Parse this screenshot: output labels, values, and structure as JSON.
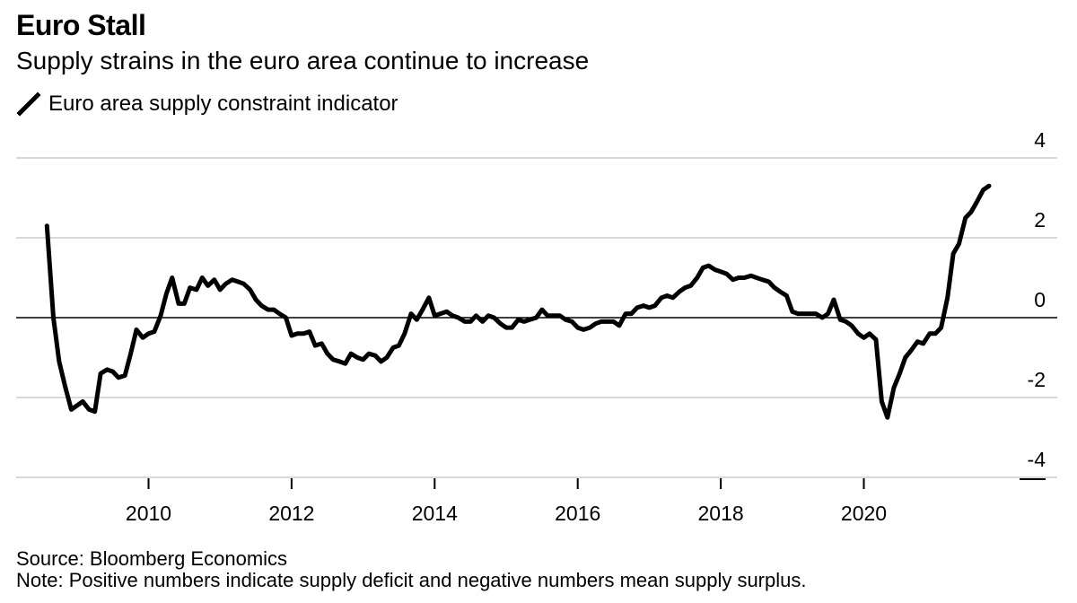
{
  "header": {
    "title": "Euro Stall",
    "subtitle": "Supply strains in the euro area continue to increase"
  },
  "legend": {
    "label": "Euro area supply constraint indicator"
  },
  "footer": {
    "source": "Source: Bloomberg Economics",
    "note": "Note: Positive numbers indicate supply deficit and negative numbers mean supply surplus."
  },
  "colors": {
    "line": "#000000",
    "grid": "#d9d9d9",
    "zero_line": "#000000",
    "axis_text": "#000000"
  },
  "chart_data": {
    "type": "line",
    "title": "Euro Stall",
    "subtitle": "Supply strains in the euro area continue to increase",
    "xlabel": "",
    "ylabel": "",
    "xlim": [
      2008.35,
      2022.3
    ],
    "ylim": [
      -4.2,
      4.5
    ],
    "x_ticks": [
      2010,
      2012,
      2014,
      2016,
      2018,
      2020
    ],
    "y_ticks": [
      4,
      2,
      0,
      -2,
      -4
    ],
    "y_tick_labels": [
      "4",
      "2",
      "0",
      "-2",
      "-4"
    ],
    "grid": true,
    "legend_position": "top-left",
    "series": [
      {
        "name": "Euro area supply constraint indicator",
        "x": [
          2008.58,
          2008.67,
          2008.75,
          2008.83,
          2008.92,
          2009.0,
          2009.08,
          2009.17,
          2009.25,
          2009.33,
          2009.42,
          2009.5,
          2009.58,
          2009.67,
          2009.75,
          2009.83,
          2009.92,
          2010.0,
          2010.08,
          2010.17,
          2010.25,
          2010.33,
          2010.42,
          2010.5,
          2010.58,
          2010.67,
          2010.75,
          2010.83,
          2010.92,
          2011.0,
          2011.08,
          2011.17,
          2011.25,
          2011.33,
          2011.42,
          2011.5,
          2011.58,
          2011.67,
          2011.75,
          2011.83,
          2011.92,
          2012.0,
          2012.08,
          2012.17,
          2012.25,
          2012.33,
          2012.42,
          2012.5,
          2012.58,
          2012.67,
          2012.75,
          2012.83,
          2012.92,
          2013.0,
          2013.08,
          2013.17,
          2013.25,
          2013.33,
          2013.42,
          2013.5,
          2013.58,
          2013.67,
          2013.75,
          2013.83,
          2013.92,
          2014.0,
          2014.08,
          2014.17,
          2014.25,
          2014.33,
          2014.42,
          2014.5,
          2014.58,
          2014.67,
          2014.75,
          2014.83,
          2014.92,
          2015.0,
          2015.08,
          2015.17,
          2015.25,
          2015.33,
          2015.42,
          2015.5,
          2015.58,
          2015.67,
          2015.75,
          2015.83,
          2015.92,
          2016.0,
          2016.08,
          2016.17,
          2016.25,
          2016.33,
          2016.42,
          2016.5,
          2016.58,
          2016.67,
          2016.75,
          2016.83,
          2016.92,
          2017.0,
          2017.08,
          2017.17,
          2017.25,
          2017.33,
          2017.42,
          2017.5,
          2017.58,
          2017.67,
          2017.75,
          2017.83,
          2017.92,
          2018.0,
          2018.08,
          2018.17,
          2018.25,
          2018.33,
          2018.42,
          2018.5,
          2018.58,
          2018.67,
          2018.75,
          2018.83,
          2018.92,
          2019.0,
          2019.08,
          2019.17,
          2019.25,
          2019.33,
          2019.42,
          2019.5,
          2019.58,
          2019.67,
          2019.75,
          2019.83,
          2019.92,
          2020.0,
          2020.08,
          2020.17,
          2020.25,
          2020.33,
          2020.42,
          2020.5,
          2020.58,
          2020.67,
          2020.75,
          2020.83,
          2020.92,
          2021.0,
          2021.08,
          2021.17,
          2021.25,
          2021.33,
          2021.42,
          2021.5,
          2021.58,
          2021.67,
          2021.75
        ],
        "y": [
          2.3,
          0.0,
          -1.1,
          -1.7,
          -2.3,
          -2.2,
          -2.1,
          -2.3,
          -2.35,
          -1.4,
          -1.3,
          -1.35,
          -1.5,
          -1.45,
          -0.9,
          -0.3,
          -0.5,
          -0.4,
          -0.35,
          0.05,
          0.6,
          1.0,
          0.35,
          0.35,
          0.75,
          0.7,
          1.0,
          0.8,
          0.95,
          0.7,
          0.85,
          0.95,
          0.9,
          0.85,
          0.7,
          0.45,
          0.3,
          0.2,
          0.2,
          0.1,
          0.0,
          -0.45,
          -0.4,
          -0.4,
          -0.35,
          -0.7,
          -0.65,
          -0.9,
          -1.05,
          -1.1,
          -1.15,
          -0.9,
          -1.0,
          -1.05,
          -0.9,
          -0.95,
          -1.1,
          -1.0,
          -0.75,
          -0.7,
          -0.4,
          0.1,
          -0.05,
          0.2,
          0.5,
          0.05,
          0.1,
          0.15,
          0.05,
          0.0,
          -0.1,
          -0.1,
          0.05,
          -0.1,
          0.05,
          0.0,
          -0.15,
          -0.25,
          -0.25,
          -0.05,
          -0.1,
          -0.05,
          0.0,
          0.2,
          0.05,
          0.05,
          0.05,
          -0.05,
          -0.1,
          -0.25,
          -0.3,
          -0.25,
          -0.15,
          -0.1,
          -0.1,
          -0.1,
          -0.2,
          0.1,
          0.1,
          0.25,
          0.3,
          0.25,
          0.3,
          0.5,
          0.55,
          0.5,
          0.65,
          0.75,
          0.8,
          1.0,
          1.25,
          1.3,
          1.2,
          1.15,
          1.1,
          0.95,
          1.0,
          1.0,
          1.05,
          1.0,
          0.95,
          0.9,
          0.75,
          0.65,
          0.55,
          0.15,
          0.1,
          0.1,
          0.1,
          0.1,
          0.0,
          0.1,
          0.45,
          -0.05,
          -0.1,
          -0.2,
          -0.4,
          -0.5,
          -0.4,
          -0.55,
          -2.1,
          -2.5,
          -1.75,
          -1.4,
          -1.0,
          -0.8,
          -0.6,
          -0.65,
          -0.4,
          -0.4,
          -0.25,
          0.5,
          1.6,
          1.85,
          2.5,
          2.65,
          2.9,
          3.2,
          3.3
        ]
      }
    ]
  }
}
